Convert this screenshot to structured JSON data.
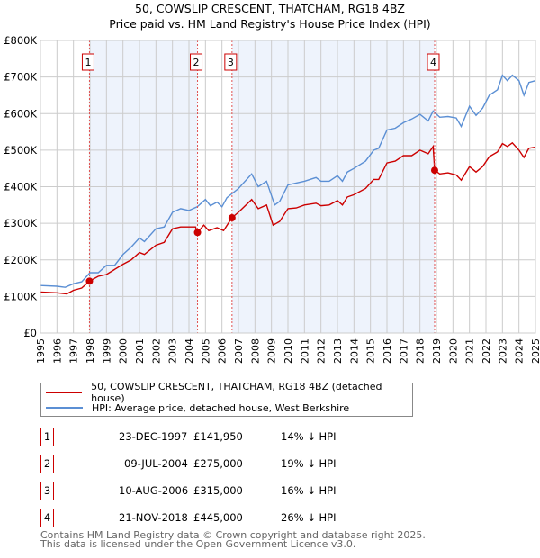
{
  "chart_data": {
    "type": "line",
    "title": "50, COWSLIP CRESCENT, THATCHAM, RG18 4BZ",
    "subtitle": "Price paid vs. HM Land Registry's House Price Index (HPI)",
    "xlim": [
      1995,
      2025
    ],
    "ylim": [
      0,
      800000
    ],
    "x_ticks": [
      "1995",
      "1996",
      "1997",
      "1998",
      "1999",
      "2000",
      "2001",
      "2002",
      "2003",
      "2004",
      "2005",
      "2006",
      "2007",
      "2008",
      "2009",
      "2010",
      "2011",
      "2012",
      "2013",
      "2014",
      "2015",
      "2016",
      "2017",
      "2018",
      "2019",
      "2020",
      "2021",
      "2022",
      "2023",
      "2024",
      "2025"
    ],
    "y_ticks": [
      {
        "v": 0,
        "label": "£0"
      },
      {
        "v": 100000,
        "label": "£100K"
      },
      {
        "v": 200000,
        "label": "£200K"
      },
      {
        "v": 300000,
        "label": "£300K"
      },
      {
        "v": 400000,
        "label": "£400K"
      },
      {
        "v": 500000,
        "label": "£500K"
      },
      {
        "v": 600000,
        "label": "£600K"
      },
      {
        "v": 700000,
        "label": "£700K"
      },
      {
        "v": 800000,
        "label": "£800K"
      }
    ],
    "grid": true,
    "series": [
      {
        "name": "50, COWSLIP CRESCENT, THATCHAM, RG18 4BZ (detached house)",
        "color": "#cc0000",
        "x": [
          1995,
          1996,
          1996.6,
          1997,
          1997.5,
          1997.97,
          1998.5,
          1999,
          2000,
          2000.5,
          2001,
          2001.3,
          2002,
          2002.5,
          2003,
          2003.5,
          2004.4,
          2004.52,
          2004.9,
          2005.2,
          2005.7,
          2006.1,
          2006.6,
          2007,
          2007.8,
          2008.2,
          2008.7,
          2009.1,
          2009.5,
          2010,
          2010.5,
          2011,
          2011.7,
          2012,
          2012.5,
          2013,
          2013.3,
          2013.6,
          2014,
          2014.7,
          2015.2,
          2015.5,
          2016,
          2016.5,
          2017,
          2017.5,
          2018,
          2018.5,
          2018.8,
          2018.89,
          2019.2,
          2019.7,
          2020.2,
          2020.5,
          2021,
          2021.4,
          2021.8,
          2022.2,
          2022.7,
          2023,
          2023.3,
          2023.6,
          2024,
          2024.3,
          2024.6,
          2025
        ],
        "y": [
          112000,
          110000,
          107000,
          117000,
          123000,
          141950,
          155000,
          160000,
          188000,
          200000,
          220000,
          215000,
          240000,
          248000,
          285000,
          290000,
          290000,
          275000,
          295000,
          280000,
          288000,
          280000,
          315000,
          330000,
          365000,
          340000,
          350000,
          295000,
          305000,
          340000,
          342000,
          350000,
          355000,
          348000,
          350000,
          362000,
          350000,
          372000,
          378000,
          395000,
          420000,
          420000,
          465000,
          470000,
          485000,
          485000,
          500000,
          490000,
          510000,
          445000,
          435000,
          438000,
          432000,
          418000,
          455000,
          440000,
          455000,
          482000,
          495000,
          518000,
          510000,
          520000,
          500000,
          480000,
          505000,
          508000
        ]
      },
      {
        "name": "HPI: Average price, detached house, West Berkshire",
        "color": "#5b8fd4",
        "x": [
          1995,
          1996,
          1996.5,
          1997,
          1997.5,
          1998,
          1998.5,
          1999,
          1999.5,
          2000,
          2000.5,
          2001,
          2001.3,
          2002,
          2002.5,
          2003,
          2003.5,
          2004,
          2004.5,
          2005,
          2005.3,
          2005.7,
          2006,
          2006.3,
          2007,
          2007.8,
          2008.2,
          2008.7,
          2009.2,
          2009.5,
          2010,
          2010.5,
          2011,
          2011.7,
          2012,
          2012.5,
          2013,
          2013.3,
          2013.6,
          2014,
          2014.7,
          2015.2,
          2015.5,
          2016,
          2016.5,
          2017,
          2017.5,
          2018,
          2018.5,
          2018.8,
          2019.2,
          2019.7,
          2020.2,
          2020.5,
          2021,
          2021.4,
          2021.8,
          2022.2,
          2022.7,
          2023,
          2023.3,
          2023.6,
          2024,
          2024.3,
          2024.6,
          2025
        ],
        "y": [
          130000,
          128000,
          125000,
          135000,
          140000,
          165000,
          165000,
          185000,
          185000,
          215000,
          235000,
          260000,
          250000,
          285000,
          290000,
          330000,
          340000,
          335000,
          345000,
          365000,
          348000,
          358000,
          345000,
          370000,
          395000,
          435000,
          400000,
          415000,
          350000,
          360000,
          405000,
          410000,
          415000,
          425000,
          415000,
          415000,
          430000,
          415000,
          440000,
          450000,
          470000,
          500000,
          505000,
          555000,
          560000,
          575000,
          585000,
          598000,
          580000,
          607000,
          590000,
          592000,
          588000,
          565000,
          620000,
          595000,
          615000,
          650000,
          665000,
          705000,
          690000,
          705000,
          690000,
          650000,
          685000,
          690000
        ]
      }
    ],
    "sales": [
      {
        "id": "1",
        "x": 1997.97,
        "date": "23-DEC-1997",
        "price": 141950,
        "price_label": "£141,950",
        "hpi": "14% ↓ HPI"
      },
      {
        "id": "2",
        "x": 2004.52,
        "date": "09-JUL-2004",
        "price": 275000,
        "price_label": "£275,000",
        "hpi": "19% ↓ HPI"
      },
      {
        "id": "3",
        "x": 2006.61,
        "date": "10-AUG-2006",
        "price": 315000,
        "price_label": "£315,000",
        "hpi": "16% ↓ HPI"
      },
      {
        "id": "4",
        "x": 2018.89,
        "date": "21-NOV-2018",
        "price": 445000,
        "price_label": "£445,000",
        "hpi": "26% ↓ HPI"
      }
    ],
    "legend_placement": "below"
  },
  "footer": {
    "line1": "Contains HM Land Registry data © Crown copyright and database right 2025.",
    "line2": "This data is licensed under the Open Government Licence v3.0."
  }
}
